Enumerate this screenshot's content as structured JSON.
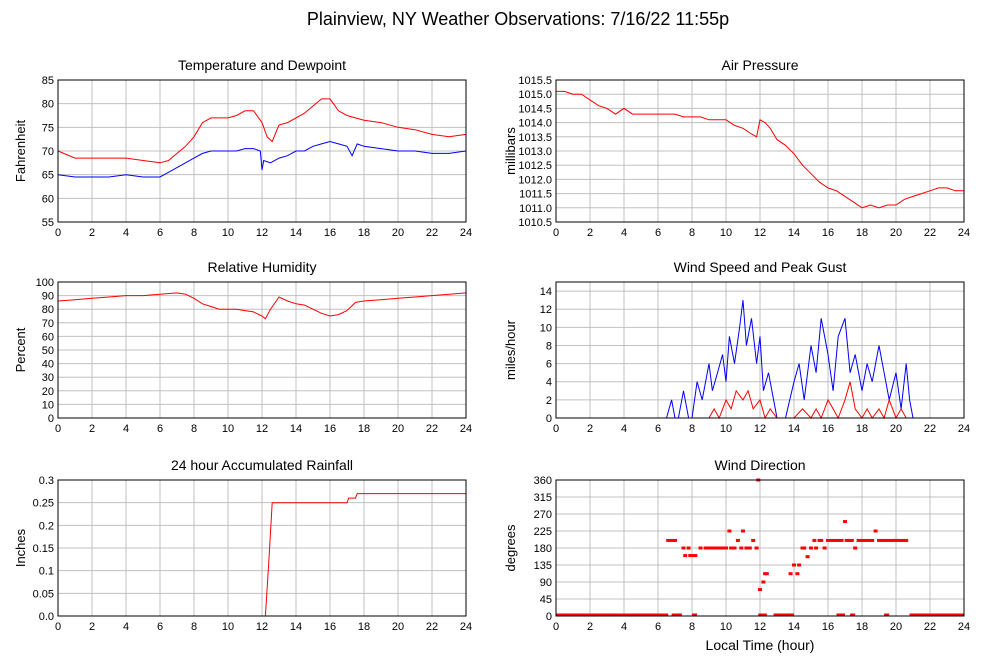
{
  "title": "Plainview, NY Weather Observations: 7/16/22 11:55p",
  "colors": {
    "red": "#ff0000",
    "blue": "#0000ff",
    "grid": "#c0c0c0",
    "axis": "#000000"
  },
  "chart_data": [
    {
      "type": "line",
      "title": "Temperature and Dewpoint",
      "ylabel": "Fahrenheit",
      "xlabel": "",
      "xlim": [
        0,
        24
      ],
      "ylim": [
        55,
        85
      ],
      "x_ticks": [
        0,
        2,
        4,
        6,
        8,
        10,
        12,
        14,
        16,
        18,
        20,
        22,
        24
      ],
      "y_ticks": [
        55,
        60,
        65,
        70,
        75,
        80,
        85
      ],
      "y_tick_labels": [
        "55",
        "60",
        "65",
        "70",
        "75",
        "80",
        "85"
      ],
      "grid": true,
      "series": [
        {
          "color": "#ff0000",
          "x": [
            0,
            1,
            2,
            3,
            4,
            5,
            6,
            6.5,
            7,
            7.5,
            8,
            8.5,
            9,
            9.5,
            10,
            10.5,
            11,
            11.5,
            12,
            12.3,
            12.6,
            13,
            13.5,
            14,
            14.5,
            15,
            15.5,
            16,
            16.5,
            17,
            17.5,
            18,
            19,
            20,
            21,
            22,
            23,
            24
          ],
          "y": [
            70,
            68.5,
            68.5,
            68.5,
            68.5,
            68,
            67.5,
            68,
            69.5,
            71,
            73,
            76,
            77,
            77,
            77,
            77.5,
            78.5,
            78.5,
            76,
            73,
            72,
            75.5,
            76,
            77,
            78,
            79.5,
            81,
            81,
            78.5,
            77.5,
            77,
            76.5,
            76,
            75,
            74.5,
            73.5,
            73,
            73.5
          ]
        },
        {
          "color": "#0000ff",
          "x": [
            0,
            1,
            2,
            3,
            4,
            5,
            6,
            6.5,
            7,
            7.5,
            8,
            8.5,
            9,
            9.5,
            10,
            10.5,
            11,
            11.5,
            11.9,
            12,
            12.1,
            12.5,
            13,
            13.5,
            14,
            14.5,
            15,
            15.5,
            16,
            16.5,
            17,
            17.3,
            17.6,
            18,
            19,
            20,
            21,
            22,
            23,
            24
          ],
          "y": [
            65,
            64.5,
            64.5,
            64.5,
            65,
            64.5,
            64.5,
            65.5,
            66.5,
            67.5,
            68.5,
            69.5,
            70,
            70,
            70,
            70,
            70.5,
            70.5,
            70,
            66,
            68,
            67.5,
            68.5,
            69,
            70,
            70,
            71,
            71.5,
            72,
            71.5,
            71,
            69,
            71.5,
            71,
            70.5,
            70,
            70,
            69.5,
            69.5,
            70
          ]
        }
      ]
    },
    {
      "type": "line",
      "title": "Air Pressure",
      "ylabel": "millibars",
      "xlabel": "",
      "xlim": [
        0,
        24
      ],
      "ylim": [
        1010.5,
        1015.5
      ],
      "x_ticks": [
        0,
        2,
        4,
        6,
        8,
        10,
        12,
        14,
        16,
        18,
        20,
        22,
        24
      ],
      "y_ticks": [
        1010.5,
        1011,
        1011.5,
        1012,
        1012.5,
        1013,
        1013.5,
        1014,
        1014.5,
        1015,
        1015.5
      ],
      "y_tick_labels": [
        "1010.5",
        "1011.0",
        "1011.5",
        "1012.0",
        "1012.5",
        "1013.0",
        "1013.5",
        "1014.0",
        "1014.5",
        "1015.0",
        "1015.5"
      ],
      "grid": true,
      "series": [
        {
          "color": "#ff0000",
          "x": [
            0,
            0.5,
            1,
            1.5,
            2,
            2.5,
            3,
            3.5,
            4,
            4.5,
            5,
            5.5,
            6,
            6.5,
            7,
            7.5,
            8,
            8.5,
            9,
            9.5,
            10,
            10.5,
            11,
            11.5,
            11.8,
            12,
            12.3,
            12.6,
            13,
            13.5,
            14,
            14.5,
            15,
            15.5,
            16,
            16.5,
            17,
            17.5,
            18,
            18.5,
            19,
            19.5,
            20,
            20.5,
            21,
            21.5,
            22,
            22.5,
            23,
            23.5,
            24
          ],
          "y": [
            1015.1,
            1015.1,
            1015.0,
            1015.0,
            1014.8,
            1014.6,
            1014.5,
            1014.3,
            1014.5,
            1014.3,
            1014.3,
            1014.3,
            1014.3,
            1014.3,
            1014.3,
            1014.2,
            1014.2,
            1014.2,
            1014.1,
            1014.1,
            1014.1,
            1013.9,
            1013.8,
            1013.6,
            1013.5,
            1014.1,
            1014.0,
            1013.8,
            1013.4,
            1013.2,
            1012.9,
            1012.5,
            1012.2,
            1011.9,
            1011.7,
            1011.6,
            1011.4,
            1011.2,
            1011.0,
            1011.1,
            1011.0,
            1011.1,
            1011.1,
            1011.3,
            1011.4,
            1011.5,
            1011.6,
            1011.7,
            1011.7,
            1011.6,
            1011.6
          ]
        }
      ]
    },
    {
      "type": "line",
      "title": "Relative Humidity",
      "ylabel": "Percent",
      "xlabel": "",
      "xlim": [
        0,
        24
      ],
      "ylim": [
        0,
        100
      ],
      "x_ticks": [
        0,
        2,
        4,
        6,
        8,
        10,
        12,
        14,
        16,
        18,
        20,
        22,
        24
      ],
      "y_ticks": [
        0,
        10,
        20,
        30,
        40,
        50,
        60,
        70,
        80,
        90,
        100
      ],
      "y_tick_labels": [
        "0",
        "10",
        "20",
        "30",
        "40",
        "50",
        "60",
        "70",
        "80",
        "90",
        "100"
      ],
      "grid": true,
      "series": [
        {
          "color": "#ff0000",
          "x": [
            0,
            1,
            2,
            3,
            4,
            5,
            6,
            7,
            7.5,
            8,
            8.5,
            9,
            9.5,
            10,
            10.5,
            11,
            11.5,
            12,
            12.2,
            12.5,
            13,
            13.5,
            14,
            14.5,
            15,
            15.5,
            16,
            16.5,
            17,
            17.5,
            18,
            19,
            20,
            21,
            22,
            23,
            24
          ],
          "y": [
            86,
            87,
            88,
            89,
            90,
            90,
            91,
            92,
            91,
            88,
            84,
            82,
            80,
            80,
            80,
            79,
            78,
            75,
            73,
            80,
            89,
            86,
            84,
            83,
            80,
            77,
            75,
            76,
            79,
            85,
            86,
            87,
            88,
            89,
            90,
            91,
            92
          ]
        }
      ]
    },
    {
      "type": "line",
      "title": "Wind Speed and Peak Gust",
      "ylabel": "miles/hour",
      "xlabel": "",
      "xlim": [
        0,
        24
      ],
      "ylim": [
        0,
        15
      ],
      "x_ticks": [
        0,
        2,
        4,
        6,
        8,
        10,
        12,
        14,
        16,
        18,
        20,
        22,
        24
      ],
      "y_ticks": [
        0,
        2,
        4,
        6,
        8,
        10,
        12,
        14
      ],
      "y_tick_labels": [
        "0",
        "2",
        "4",
        "6",
        "8",
        "10",
        "12",
        "14"
      ],
      "grid": true,
      "series": [
        {
          "color": "#0000ff",
          "x": [
            0,
            6.5,
            6.8,
            7,
            7.2,
            7.5,
            7.8,
            8,
            8.3,
            8.6,
            9,
            9.2,
            9.5,
            9.8,
            10,
            10.2,
            10.5,
            10.8,
            11,
            11.2,
            11.5,
            11.8,
            12,
            12.2,
            12.5,
            12.8,
            13,
            13.5,
            14,
            14.3,
            14.6,
            15,
            15.3,
            15.6,
            16,
            16.3,
            16.6,
            17,
            17.3,
            17.6,
            18,
            18.3,
            18.6,
            19,
            19.3,
            19.6,
            20,
            20.3,
            20.6,
            20.8,
            21,
            24
          ],
          "y": [
            0,
            0,
            2,
            0,
            0,
            3,
            0,
            0,
            4,
            2,
            6,
            3,
            5,
            7,
            4,
            9,
            6,
            10,
            13,
            8,
            11,
            6,
            9,
            3,
            5,
            2,
            0,
            0,
            4,
            6,
            2,
            8,
            5,
            11,
            7,
            3,
            9,
            11,
            5,
            7,
            3,
            6,
            4,
            8,
            5,
            2,
            5,
            1,
            6,
            2,
            0,
            0
          ]
        },
        {
          "color": "#ff0000",
          "x": [
            0,
            9,
            9.3,
            9.6,
            10,
            10.3,
            10.6,
            11,
            11.3,
            11.6,
            12,
            12.3,
            12.6,
            13,
            14,
            14.5,
            15,
            15.3,
            15.6,
            16,
            16.3,
            16.6,
            17,
            17.3,
            17.6,
            18,
            18.3,
            18.6,
            19,
            19.3,
            19.6,
            20,
            20.3,
            20.6,
            21,
            24
          ],
          "y": [
            0,
            0,
            1,
            0,
            2,
            1,
            3,
            2,
            3,
            1,
            2,
            0,
            1,
            0,
            0,
            1,
            0,
            1,
            0,
            2,
            1,
            0,
            2,
            4,
            1,
            0,
            1,
            0,
            1,
            0,
            2,
            0,
            1,
            0,
            0,
            0
          ]
        }
      ]
    },
    {
      "type": "line",
      "title": "24 hour Accumulated Rainfall",
      "ylabel": "Inches",
      "xlabel": "",
      "xlim": [
        0,
        24
      ],
      "ylim": [
        0,
        0.3
      ],
      "x_ticks": [
        0,
        2,
        4,
        6,
        8,
        10,
        12,
        14,
        16,
        18,
        20,
        22,
        24
      ],
      "y_ticks": [
        0,
        0.05,
        0.1,
        0.15,
        0.2,
        0.25,
        0.3
      ],
      "y_tick_labels": [
        "0.0",
        "0.05",
        "0.1",
        "0.15",
        "0.2",
        "0.25",
        "0.3"
      ],
      "grid": true,
      "series": [
        {
          "color": "#ff0000",
          "x": [
            0,
            12.2,
            12.4,
            12.6,
            17,
            17.1,
            17.5,
            17.6,
            24
          ],
          "y": [
            0,
            0,
            0.12,
            0.25,
            0.25,
            0.26,
            0.26,
            0.27,
            0.27
          ]
        }
      ]
    },
    {
      "type": "scatter",
      "title": "Wind Direction",
      "ylabel": "degrees",
      "xlabel": "Local Time (hour)",
      "xlim": [
        0,
        24
      ],
      "ylim": [
        0,
        360
      ],
      "x_ticks": [
        0,
        2,
        4,
        6,
        8,
        10,
        12,
        14,
        16,
        18,
        20,
        22,
        24
      ],
      "y_ticks": [
        0,
        45,
        90,
        135,
        180,
        225,
        270,
        315,
        360
      ],
      "y_tick_labels": [
        "0",
        "45",
        "90",
        "135",
        "180",
        "225",
        "270",
        "315",
        "360"
      ],
      "grid": true,
      "baseline_segments": [
        [
          0,
          6.6
        ],
        [
          6.8,
          7.4
        ],
        [
          8.0,
          8.3
        ],
        [
          11.9,
          12.4
        ],
        [
          12.8,
          14.0
        ],
        [
          16.5,
          17.0
        ],
        [
          17.3,
          17.6
        ],
        [
          19.3,
          19.6
        ],
        [
          20.8,
          24
        ]
      ],
      "series": [
        {
          "color": "#ff0000",
          "x": [
            6.6,
            6.8,
            7.0,
            7.5,
            7.6,
            7.8,
            7.9,
            8.1,
            8.2,
            8.5,
            8.8,
            9.0,
            9.2,
            9.4,
            9.6,
            9.8,
            10.0,
            10.2,
            10.3,
            10.5,
            10.7,
            10.9,
            11.0,
            11.2,
            11.4,
            11.6,
            11.8,
            11.9,
            12.0,
            12.2,
            12.3,
            12.4,
            13.8,
            14.0,
            14.2,
            14.3,
            14.5,
            14.6,
            14.8,
            15.0,
            15.2,
            15.3,
            15.5,
            15.6,
            15.8,
            16.0,
            16.2,
            16.4,
            16.6,
            16.8,
            17.0,
            17.1,
            17.3,
            17.4,
            17.6,
            17.8,
            18.0,
            18.2,
            18.4,
            18.6,
            18.8,
            19.0,
            19.2,
            19.4,
            19.6,
            19.8,
            20.0,
            20.2,
            20.4,
            20.6
          ],
          "y": [
            200,
            200,
            200,
            180,
            160,
            180,
            160,
            160,
            160,
            180,
            180,
            180,
            180,
            180,
            180,
            180,
            180,
            225,
            180,
            180,
            200,
            180,
            225,
            180,
            180,
            200,
            180,
            360,
            70,
            90,
            112,
            112,
            112,
            135,
            112,
            135,
            180,
            180,
            157,
            180,
            200,
            180,
            200,
            200,
            180,
            200,
            200,
            200,
            200,
            200,
            250,
            200,
            200,
            200,
            180,
            200,
            200,
            200,
            200,
            200,
            225,
            200,
            200,
            200,
            200,
            200,
            200,
            200,
            200,
            200
          ]
        }
      ]
    }
  ]
}
